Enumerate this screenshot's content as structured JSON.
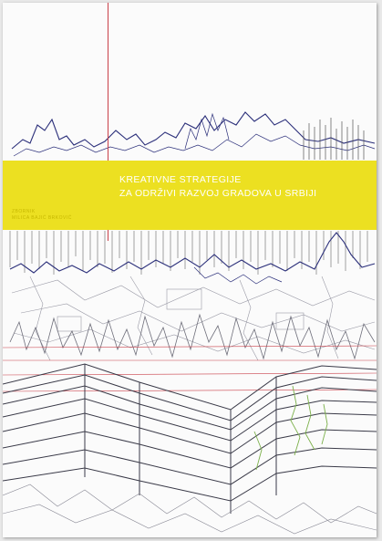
{
  "cover": {
    "title_lines": [
      "KREATIVNE STRATEGIJE",
      "ZA ODRŽIVI RAZVOJ GRADOVA U SRBIJI"
    ],
    "author_lines": [
      "ZBORNIK",
      "MILICA BAJIĆ BRKOVIĆ"
    ],
    "colors": {
      "band": "#ece021",
      "title_text": "#ffffff",
      "author_text": "#c7b800",
      "rule": "#c9404a",
      "skyline": "#2b2f7a",
      "sketch": "#7a7a8a",
      "accent_green": "#7bb04a",
      "accent_red": "#c9404a"
    }
  }
}
